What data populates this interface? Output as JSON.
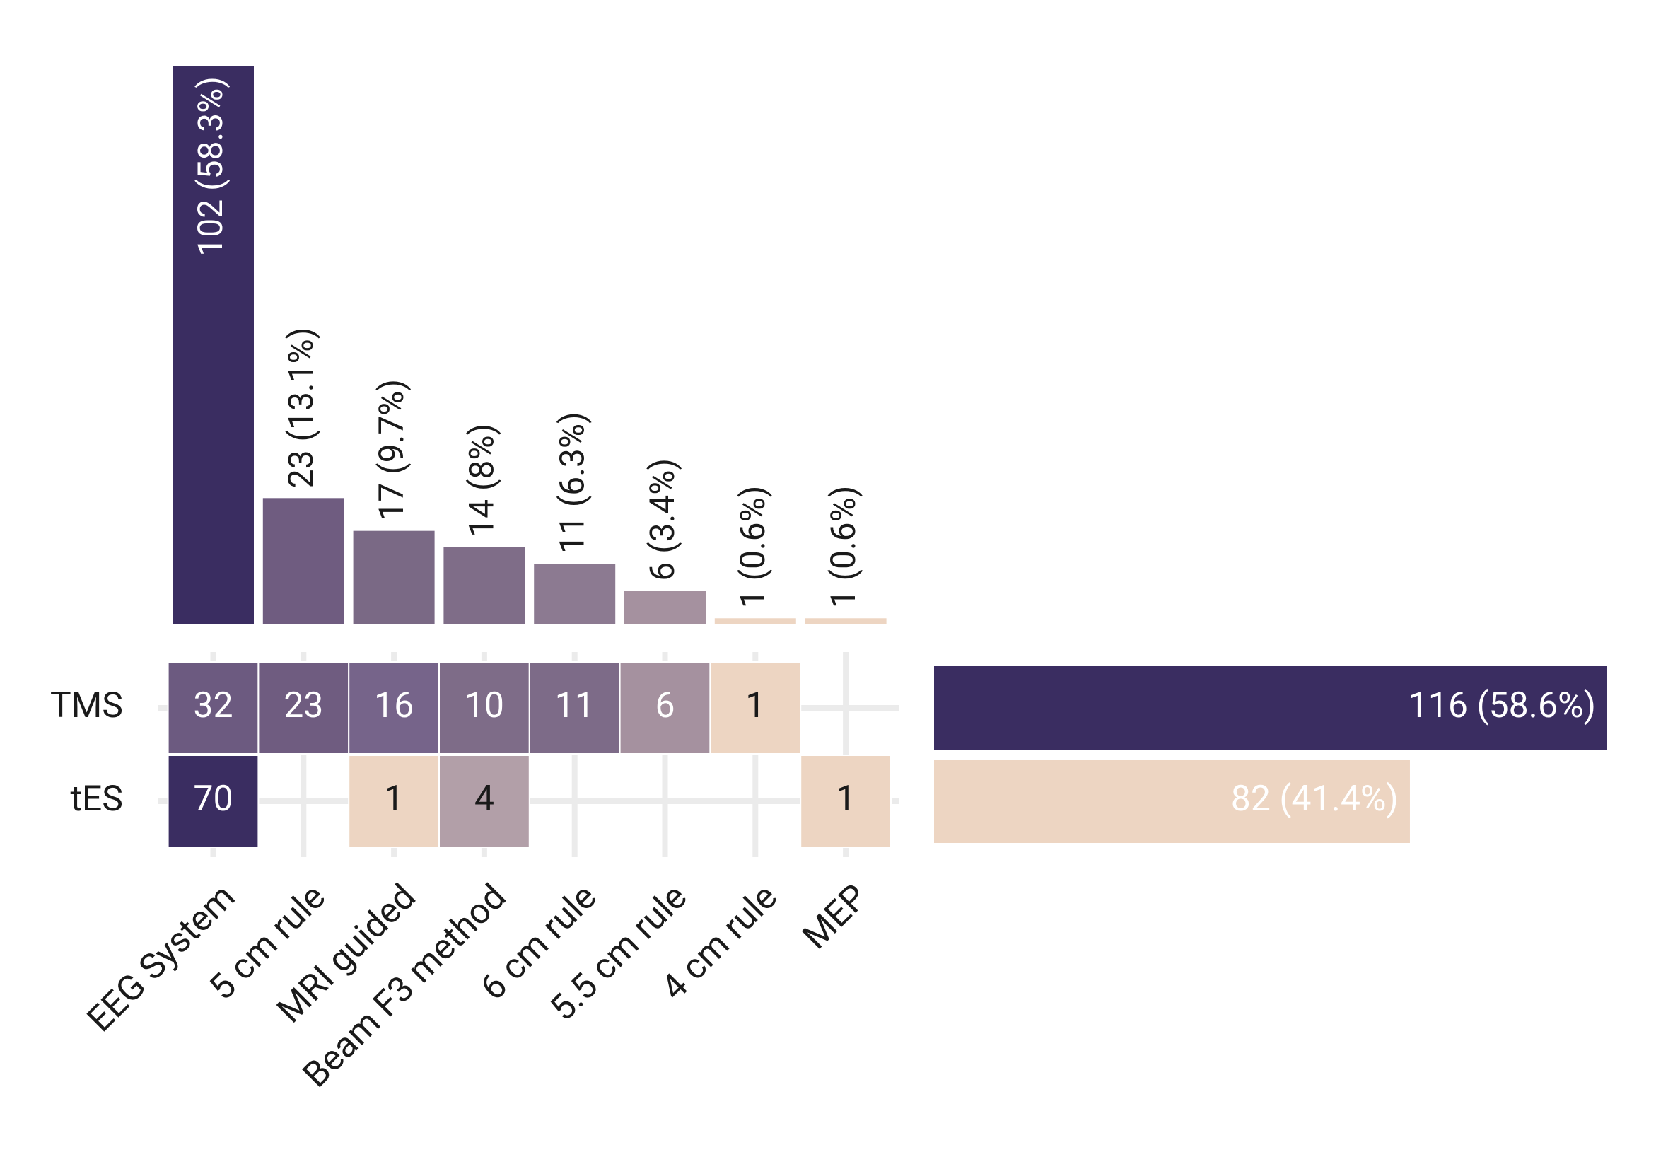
{
  "chart_data": {
    "type": "upset",
    "categories": [
      "EEG System",
      "5 cm rule",
      "MRI guided",
      "Beam F3 method",
      "6 cm rule",
      "5.5 cm rule",
      "4 cm rule",
      "MEP"
    ],
    "values": [
      102,
      23,
      17,
      14,
      11,
      6,
      1,
      1
    ],
    "value_labels": [
      "102 (58.3%)",
      "23 (13.1%)",
      "17 (9.7%)",
      "14 (8%)",
      "11 (6.3%)",
      "6 (3.4%)",
      "1 (0.6%)",
      "1 (0.6%)"
    ],
    "colors": [
      "#3a2d61",
      "#6f5c80",
      "#7a6985",
      "#7f6d88",
      "#8c7a91",
      "#a5919f",
      "#edd5c2",
      "#edd5c2"
    ],
    "matrix": [
      {
        "name": "TMS",
        "values": [
          32,
          23,
          16,
          10,
          11,
          6,
          1,
          null
        ],
        "colors": [
          "#6c5a80",
          "#6f5c80",
          "#76648a",
          "#7e6c88",
          "#7d6b88",
          "#a5919f",
          "#edd5c2",
          null
        ],
        "total": 116,
        "total_label": "116 (58.6%)",
        "total_color": "#3a2d61"
      },
      {
        "name": "tES",
        "values": [
          70,
          null,
          1,
          4,
          null,
          null,
          null,
          1
        ],
        "colors": [
          "#3a2d61",
          null,
          "#edd5c2",
          "#b29fa8",
          null,
          null,
          null,
          "#edd5c2"
        ],
        "total": 82,
        "total_label": "82 (41.4%)",
        "total_color": "#edd5c2"
      }
    ]
  }
}
